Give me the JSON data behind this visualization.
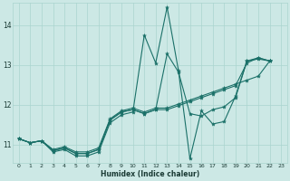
{
  "xlabel": "Humidex (Indice chaleur)",
  "bg_color": "#cce8e5",
  "line_color": "#1a7068",
  "grid_color": "#aad4cf",
  "xmin": -0.5,
  "xmax": 23.5,
  "ymin": 10.55,
  "ymax": 14.55,
  "yticks": [
    11,
    12,
    13,
    14
  ],
  "xticks": [
    0,
    1,
    2,
    3,
    4,
    5,
    6,
    7,
    8,
    9,
    10,
    11,
    12,
    13,
    14,
    15,
    16,
    17,
    18,
    19,
    20,
    21,
    22,
    23
  ],
  "series": [
    {
      "x": [
        0,
        1,
        2,
        3,
        4,
        5,
        6,
        7,
        8,
        9,
        10,
        11,
        12,
        13,
        14,
        15,
        16,
        17,
        18,
        19,
        20,
        21,
        22
      ],
      "y": [
        11.15,
        11.05,
        11.1,
        10.82,
        10.88,
        10.72,
        10.72,
        10.82,
        11.55,
        11.75,
        11.82,
        13.75,
        13.05,
        14.45,
        12.85,
        10.65,
        11.85,
        11.52,
        11.58,
        12.22,
        13.1,
        13.15,
        13.1
      ]
    },
    {
      "x": [
        0,
        1,
        2,
        3,
        4,
        5,
        6,
        7,
        8,
        9,
        10,
        11,
        12,
        13,
        14,
        15,
        16,
        17,
        18,
        19,
        20,
        21,
        22
      ],
      "y": [
        11.15,
        11.05,
        11.1,
        10.85,
        10.92,
        10.78,
        10.78,
        10.88,
        11.62,
        11.82,
        11.88,
        11.78,
        11.88,
        13.28,
        12.82,
        11.78,
        11.72,
        11.88,
        11.95,
        12.18,
        13.1,
        13.18,
        13.1
      ]
    },
    {
      "x": [
        0,
        1,
        2,
        3,
        4,
        5,
        6,
        7,
        8,
        9,
        10,
        11,
        12,
        13,
        14,
        15,
        16,
        17,
        18,
        19,
        20,
        21,
        22
      ],
      "y": [
        11.15,
        11.05,
        11.1,
        10.88,
        10.95,
        10.82,
        10.82,
        10.92,
        11.65,
        11.85,
        11.92,
        11.82,
        11.92,
        11.92,
        12.02,
        12.12,
        12.22,
        12.32,
        12.42,
        12.52,
        12.62,
        12.72,
        13.1
      ]
    },
    {
      "x": [
        0,
        1,
        2,
        3,
        4,
        5,
        6,
        7,
        8,
        9,
        10,
        11,
        12,
        13,
        14,
        15,
        16,
        17,
        18,
        19,
        20,
        21,
        22
      ],
      "y": [
        11.15,
        11.05,
        11.1,
        10.85,
        10.92,
        10.78,
        10.78,
        10.88,
        11.62,
        11.82,
        11.88,
        11.78,
        11.88,
        11.88,
        11.98,
        12.08,
        12.18,
        12.28,
        12.38,
        12.48,
        13.05,
        13.18,
        13.1
      ]
    }
  ]
}
